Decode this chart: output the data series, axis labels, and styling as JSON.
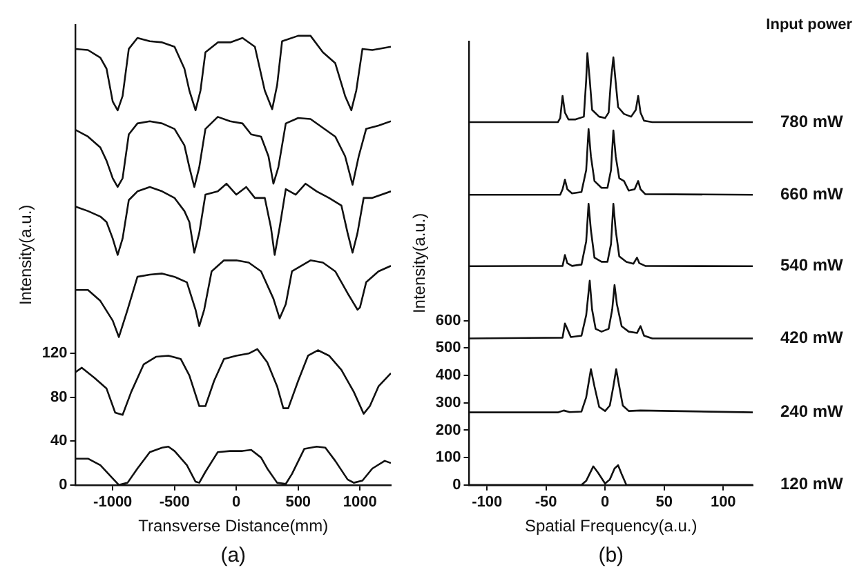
{
  "chart_data": [
    {
      "type": "line",
      "xlabel": "Transverse Distance(mm)",
      "ylabel": "Intensity(a.u.)",
      "annotations": [
        "(a)"
      ],
      "xlim": [
        -1300,
        1250
      ],
      "xticks": [
        -1000,
        -500,
        0,
        500,
        1000
      ],
      "ylim": [
        0,
        420
      ],
      "yticks": [
        0,
        40,
        80,
        120
      ],
      "series": [
        {
          "color": "#111111",
          "x": [
            -1300,
            -1200,
            -1100,
            -1000,
            -950,
            -880,
            -800,
            -700,
            -600,
            -550,
            -500,
            -400,
            -330,
            -300,
            -250,
            -150,
            -50,
            50,
            120,
            200,
            250,
            330,
            400,
            450,
            550,
            650,
            720,
            800,
            900,
            950,
            1020,
            1100,
            1200,
            1250
          ],
          "values": [
            24,
            24,
            18,
            6,
            0,
            2,
            15,
            30,
            34,
            35,
            31,
            18,
            3,
            2,
            12,
            30,
            31,
            31,
            32,
            25,
            15,
            2,
            1,
            10,
            33,
            35,
            34,
            22,
            5,
            2,
            4,
            15,
            22,
            20
          ]
        },
        {
          "color": "#111111",
          "x": [
            -1300,
            -1250,
            -1150,
            -1050,
            -980,
            -920,
            -850,
            -750,
            -650,
            -550,
            -450,
            -380,
            -300,
            -250,
            -180,
            -100,
            0,
            100,
            170,
            250,
            330,
            380,
            420,
            500,
            580,
            660,
            750,
            850,
            950,
            1030,
            1080,
            1150,
            1250
          ],
          "values": [
            103,
            107,
            98,
            88,
            66,
            64,
            85,
            110,
            117,
            118,
            115,
            100,
            72,
            72,
            95,
            115,
            118,
            120,
            124,
            112,
            90,
            70,
            70,
            95,
            118,
            123,
            118,
            105,
            85,
            65,
            72,
            90,
            102
          ]
        },
        {
          "color": "#111111",
          "x": [
            -1300,
            -1200,
            -1100,
            -1000,
            -950,
            -880,
            -800,
            -700,
            -600,
            -500,
            -400,
            -330,
            -300,
            -260,
            -200,
            -100,
            0,
            100,
            200,
            300,
            350,
            400,
            450,
            600,
            700,
            800,
            900,
            980,
            1000,
            1050,
            1150,
            1250
          ],
          "values": [
            178,
            178,
            168,
            150,
            135,
            160,
            190,
            192,
            193,
            190,
            185,
            160,
            145,
            160,
            195,
            205,
            205,
            203,
            195,
            170,
            152,
            165,
            195,
            205,
            203,
            195,
            175,
            160,
            162,
            185,
            195,
            200
          ]
        },
        {
          "color": "#111111",
          "x": [
            -1300,
            -1200,
            -1100,
            -1050,
            -1000,
            -960,
            -920,
            -870,
            -800,
            -700,
            -600,
            -500,
            -420,
            -380,
            -340,
            -300,
            -250,
            -150,
            -80,
            0,
            80,
            150,
            230,
            280,
            310,
            350,
            400,
            480,
            560,
            650,
            750,
            850,
            900,
            940,
            980,
            1030,
            1100,
            1250
          ],
          "values": [
            254,
            250,
            245,
            240,
            225,
            210,
            225,
            260,
            268,
            272,
            268,
            262,
            250,
            240,
            212,
            230,
            265,
            268,
            275,
            265,
            272,
            262,
            262,
            235,
            210,
            235,
            270,
            265,
            275,
            268,
            262,
            255,
            230,
            212,
            230,
            262,
            262,
            268
          ]
        },
        {
          "color": "#111111",
          "x": [
            -1300,
            -1200,
            -1100,
            -1050,
            -1000,
            -960,
            -920,
            -870,
            -800,
            -700,
            -600,
            -500,
            -420,
            -380,
            -340,
            -300,
            -250,
            -150,
            -50,
            50,
            120,
            200,
            260,
            300,
            340,
            400,
            500,
            600,
            700,
            800,
            880,
            940,
            990,
            1050,
            1150,
            1250
          ],
          "values": [
            324,
            318,
            308,
            296,
            280,
            272,
            280,
            320,
            330,
            332,
            330,
            325,
            310,
            290,
            272,
            290,
            325,
            336,
            332,
            330,
            320,
            318,
            300,
            275,
            290,
            330,
            335,
            334,
            326,
            318,
            300,
            274,
            300,
            325,
            328,
            332
          ]
        },
        {
          "color": "#111111",
          "x": [
            -1300,
            -1200,
            -1100,
            -1050,
            -1000,
            -960,
            -920,
            -870,
            -800,
            -700,
            -600,
            -500,
            -420,
            -380,
            -330,
            -290,
            -250,
            -150,
            -50,
            50,
            150,
            230,
            290,
            330,
            370,
            500,
            600,
            700,
            800,
            880,
            930,
            970,
            1020,
            1100,
            1250
          ],
          "values": [
            398,
            397,
            390,
            380,
            350,
            342,
            355,
            398,
            408,
            405,
            404,
            400,
            380,
            360,
            342,
            360,
            395,
            404,
            404,
            408,
            400,
            360,
            343,
            365,
            405,
            410,
            410,
            395,
            385,
            355,
            342,
            360,
            398,
            397,
            400
          ]
        }
      ]
    },
    {
      "type": "line",
      "xlabel": "Spatial Frequency(a.u.)",
      "ylabel": "Intensity(a.u.)",
      "legend_title": "Input power",
      "annotations": [
        "(b)"
      ],
      "xlim": [
        -115,
        125
      ],
      "xticks": [
        -100,
        -50,
        0,
        50,
        100
      ],
      "ylim": [
        0,
        1620
      ],
      "yticks": [
        0,
        100,
        200,
        300,
        400,
        500,
        600
      ],
      "series": [
        {
          "name": "780 mW",
          "color": "#111111",
          "x": [
            -115,
            -40,
            -38,
            -36,
            -34,
            -31,
            -25,
            -18,
            -16,
            -15,
            -13,
            -11,
            -5,
            0,
            3,
            5,
            7,
            9,
            11,
            16,
            22,
            26,
            28,
            30,
            33,
            40,
            125
          ],
          "values": [
            1325,
            1325,
            1340,
            1421,
            1360,
            1335,
            1335,
            1345,
            1480,
            1577,
            1480,
            1370,
            1345,
            1340,
            1360,
            1480,
            1562,
            1470,
            1380,
            1355,
            1345,
            1370,
            1421,
            1360,
            1330,
            1325,
            1325
          ]
        },
        {
          "name": "660 mW",
          "color": "#111111",
          "x": [
            -115,
            -38,
            -36,
            -34,
            -32,
            -28,
            -20,
            -16,
            -14,
            -12,
            -9,
            -3,
            2,
            5,
            7,
            9,
            12,
            16,
            20,
            25,
            28,
            30,
            34,
            125
          ],
          "values": [
            1060,
            1060,
            1080,
            1115,
            1080,
            1065,
            1070,
            1150,
            1300,
            1200,
            1110,
            1085,
            1085,
            1150,
            1295,
            1200,
            1120,
            1110,
            1075,
            1080,
            1110,
            1080,
            1062,
            1060
          ]
        },
        {
          "name": "540 mW",
          "color": "#111111",
          "x": [
            -115,
            -36,
            -34,
            -32,
            -28,
            -20,
            -16,
            -14,
            -12,
            -9,
            -3,
            2,
            5,
            7,
            9,
            12,
            18,
            24,
            27,
            29,
            34,
            125
          ],
          "values": [
            799,
            800,
            840,
            810,
            800,
            805,
            890,
            1027,
            930,
            830,
            815,
            815,
            880,
            1027,
            930,
            835,
            815,
            808,
            830,
            810,
            800,
            799
          ]
        },
        {
          "name": "420 mW",
          "color": "#111111",
          "x": [
            -115,
            -36,
            -34,
            -32,
            -29,
            -20,
            -16,
            -13,
            -11,
            -8,
            -3,
            3,
            6,
            8,
            10,
            14,
            20,
            27,
            30,
            33,
            40,
            125
          ],
          "values": [
            535,
            538,
            590,
            570,
            540,
            545,
            620,
            746,
            640,
            570,
            560,
            570,
            640,
            730,
            660,
            580,
            560,
            555,
            580,
            545,
            535,
            535
          ]
        },
        {
          "name": "240 mW",
          "color": "#111111",
          "x": [
            -115,
            -40,
            -35,
            -30,
            -20,
            -16,
            -12,
            -9,
            -5,
            0,
            4,
            7,
            9.4,
            12,
            15,
            20,
            30,
            125
          ],
          "values": [
            265,
            265,
            272,
            266,
            268,
            320,
            423,
            360,
            285,
            270,
            290,
            360,
            423,
            360,
            290,
            270,
            272,
            265
          ]
        },
        {
          "name": "120 mW",
          "color": "#111111",
          "x": [
            -115,
            -20,
            -16,
            -10,
            -6,
            0,
            4,
            8,
            11,
            14,
            18,
            125
          ],
          "values": [
            0,
            0,
            15,
            68,
            45,
            5,
            20,
            60,
            72,
            40,
            0,
            0
          ]
        }
      ]
    }
  ]
}
